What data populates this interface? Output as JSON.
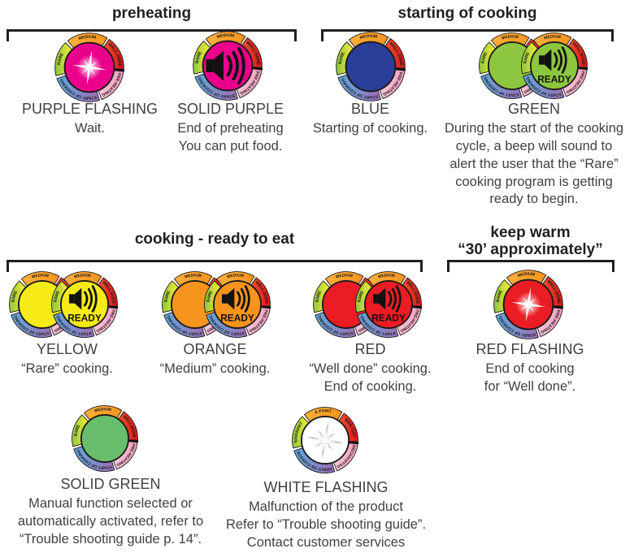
{
  "sections": {
    "preheating": "preheating",
    "starting_of_cooking": "starting of cooking",
    "cooking_ready": "cooking - ready to eat",
    "keep_warm": "keep warm\n“30’ approximately”"
  },
  "ready_label": "READY",
  "ring_labels": {
    "en": {
      "rare": "RARE",
      "medium": "MEDIUM",
      "well_done": "WELL-DONE",
      "pre_heating": "PRE-HEATING",
      "start_of_cooking": "START OF COOKING"
    },
    "fr": {
      "rare": "SAIGNANT",
      "medium": "À POINT",
      "well_done": "BIEN CUIT",
      "pre_heating": "PRÉCHAUFFAGE",
      "start_of_cooking": "DÉBUT DE CUISSON"
    }
  },
  "colors": {
    "magenta": "#EB008B",
    "blue": "#2B3E98",
    "green_bright": "#8DC63F",
    "yellow": "#F6EB16",
    "orange": "#F7941E",
    "red": "#EC1C24",
    "green_solid": "#68BE6C",
    "white": "#FFFFFF",
    "text": "#414042",
    "heading": "#231F20"
  },
  "items": [
    {
      "label": "PURPLE FLASHING",
      "desc": "Wait.",
      "dial": {
        "type": "single",
        "ring": "en",
        "center": "magenta",
        "overlay": "flash"
      }
    },
    {
      "label": "SOLID PURPLE",
      "desc": "End of preheating\nYou can put food.",
      "dial": {
        "type": "single",
        "ring": "en",
        "center": "magenta",
        "overlay": "speaker"
      }
    },
    {
      "label": "BLUE",
      "desc": "Starting of cooking.",
      "dial": {
        "type": "single",
        "ring": "en",
        "center": "blue",
        "overlay": "none"
      }
    },
    {
      "label": "GREEN",
      "desc": "During the start of the cooking\ncycle, a beep will sound to\nalert the user that the “Rare”\ncooking program is getting\nready to begin.",
      "dial": {
        "type": "pair",
        "ring": "en",
        "center": "green_bright",
        "overlay": "speaker-ready"
      }
    },
    {
      "label": "YELLOW",
      "desc": "“Rare” cooking.",
      "dial": {
        "type": "pair",
        "ring": "en",
        "center": "yellow",
        "overlay": "speaker-ready"
      }
    },
    {
      "label": "ORANGE",
      "desc": "“Medium” cooking.",
      "dial": {
        "type": "pair",
        "ring": "en",
        "center": "orange",
        "overlay": "speaker-ready"
      }
    },
    {
      "label": "RED",
      "desc": "“Well done” cooking.\nEnd of cooking.",
      "dial": {
        "type": "pair",
        "ring": "en",
        "center": "red",
        "overlay": "speaker-ready"
      }
    },
    {
      "label": "RED FLASHING",
      "desc": "End of cooking\nfor “Well done”.",
      "dial": {
        "type": "single",
        "ring": "en",
        "center": "red",
        "overlay": "flash"
      }
    },
    {
      "label": "SOLID GREEN",
      "desc": "Manual function selected or\nautomatically activated, refer to\n“Trouble shooting guide p. 14”.",
      "dial": {
        "type": "single",
        "ring": "en",
        "center": "green_solid",
        "overlay": "none"
      }
    },
    {
      "label": "WHITE FLASHING",
      "desc": "Malfunction of the product\nRefer to “Trouble shooting guide”.\nContact customer services",
      "dial": {
        "type": "single",
        "ring": "fr",
        "center": "white",
        "overlay": "flash-gray"
      }
    }
  ]
}
